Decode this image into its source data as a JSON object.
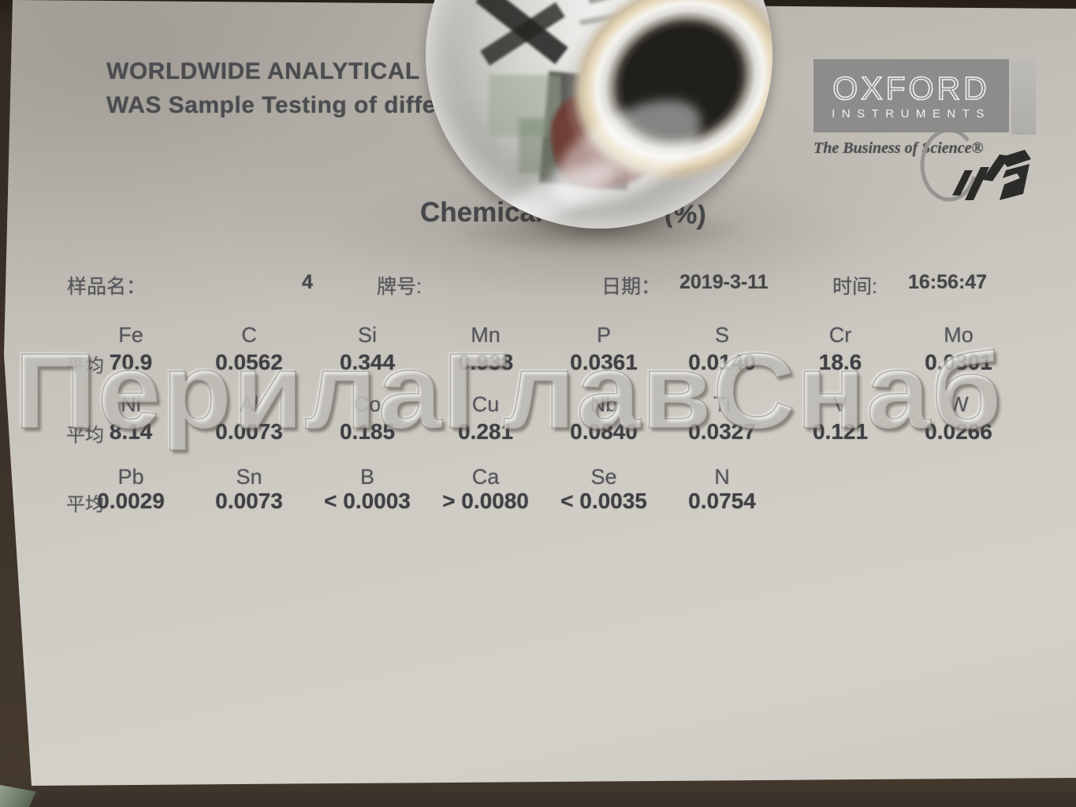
{
  "photo": {
    "watermark": "ПерилаГлавСнаб"
  },
  "colors": {
    "paper": "#cfccc5",
    "table_surface": "#3b3129",
    "logo_gray": "#8c8c8a",
    "print_text": "#4b4c4f"
  },
  "document": {
    "header_line1": "WORLDWIDE ANALYTICAL",
    "header_line2": "WAS Sample Testing of diffe",
    "title_left": "Chemical",
    "title_right": "(%)",
    "logo": {
      "name": "OXFORD",
      "sub": "INSTRUMENTS",
      "tagline": "The Business of Science®"
    },
    "info": {
      "sample_label": "样品名：",
      "sample_value": "4",
      "grade_label": "牌号:",
      "date_label": "日期：",
      "date_value": "2019-3-11",
      "time_label": "时间:",
      "time_value": "16:56:47"
    },
    "avg_label": "平均",
    "rows": [
      {
        "elements": [
          "Fe",
          "C",
          "Si",
          "Mn",
          "P",
          "S",
          "Cr",
          "Mo"
        ],
        "values": [
          "70.9",
          "0.0562",
          "0.344",
          "0.938",
          "0.0361",
          "0.0140",
          "18.6",
          "0.0301"
        ]
      },
      {
        "elements": [
          "Ni",
          "Al",
          "Co",
          "Cu",
          "Nb",
          "Ti",
          "V",
          "W"
        ],
        "values": [
          "8.14",
          "0.0073",
          "0.185",
          "0.281",
          "0.0840",
          "0.0327",
          "0.121",
          "0.0266"
        ]
      },
      {
        "elements": [
          "Pb",
          "Sn",
          "B",
          "Ca",
          "Se",
          "N"
        ],
        "values": [
          "0.0029",
          "0.0073",
          "< 0.0003",
          "> 0.0080",
          "< 0.0035",
          "0.0754"
        ]
      }
    ]
  }
}
